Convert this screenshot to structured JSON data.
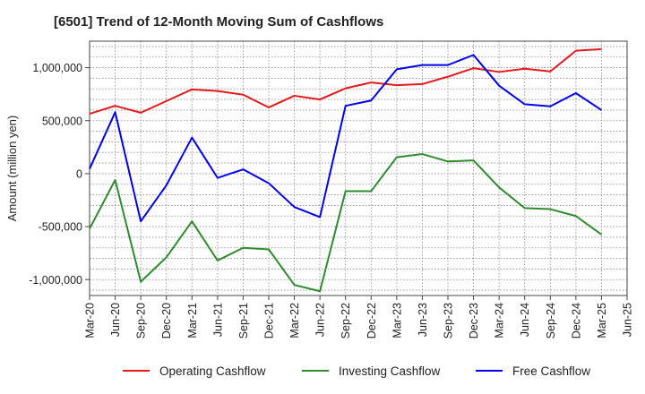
{
  "chart_data": {
    "type": "line",
    "title": "[6501]  Trend of 12-Month Moving Sum of Cashflows",
    "xlabel": "",
    "ylabel": "Amount (million yen)",
    "ylim": [
      -1150000,
      1250000
    ],
    "y_ticks": [
      1000000,
      500000,
      0,
      -500000,
      -1000000
    ],
    "y_tick_labels": [
      "1,000,000",
      "500,000",
      "0",
      "-500,000",
      "-1,000,000"
    ],
    "x_tick_labels": [
      "Mar-20",
      "Jun-20",
      "Sep-20",
      "Dec-20",
      "Mar-21",
      "Jun-21",
      "Sep-21",
      "Dec-21",
      "Mar-22",
      "Jun-22",
      "Sep-22",
      "Dec-22",
      "Mar-23",
      "Jun-23",
      "Sep-23",
      "Dec-23",
      "Mar-24",
      "Jun-24",
      "Sep-24",
      "Dec-24",
      "Mar-25",
      "Jun-25"
    ],
    "x": [
      "Mar-20",
      "Jun-20",
      "Sep-20",
      "Dec-20",
      "Mar-21",
      "Jun-21",
      "Sep-21",
      "Dec-21",
      "Mar-22",
      "Jun-22",
      "Sep-22",
      "Dec-22",
      "Mar-23",
      "Jun-23",
      "Sep-23",
      "Dec-23",
      "Mar-24",
      "Jun-24",
      "Sep-24",
      "Dec-24",
      "Mar-25"
    ],
    "grid": true,
    "legend_position": "bottom",
    "series": [
      {
        "name": "Operating Cashflow",
        "color": "#e41a1c",
        "values": [
          565000,
          640000,
          575000,
          685000,
          795000,
          780000,
          745000,
          625000,
          735000,
          700000,
          805000,
          860000,
          835000,
          845000,
          915000,
          995000,
          960000,
          990000,
          965000,
          1160000,
          1175000
        ]
      },
      {
        "name": "Investing Cashflow",
        "color": "#2e8b2e",
        "values": [
          -520000,
          -60000,
          -1020000,
          -790000,
          -450000,
          -820000,
          -700000,
          -715000,
          -1050000,
          -1110000,
          -165000,
          -165000,
          155000,
          185000,
          115000,
          125000,
          -130000,
          -325000,
          -335000,
          -400000,
          -575000
        ]
      },
      {
        "name": "Free Cashflow",
        "color": "#0000ee",
        "values": [
          45000,
          580000,
          -450000,
          -110000,
          340000,
          -40000,
          40000,
          -90000,
          -315000,
          -410000,
          640000,
          690000,
          985000,
          1025000,
          1025000,
          1120000,
          830000,
          655000,
          635000,
          760000,
          600000
        ]
      }
    ]
  }
}
